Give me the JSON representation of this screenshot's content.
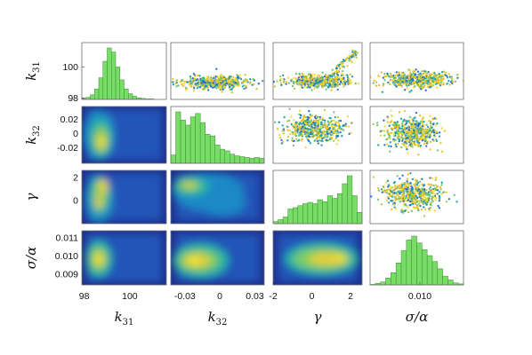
{
  "chart_data": {
    "type": "pairs",
    "variables": [
      {
        "key": "k31",
        "base": "k",
        "sub": "31",
        "ticks": [
          98,
          100
        ],
        "tick_labels": [
          "98",
          "100"
        ],
        "range": [
          97.9,
          101.6
        ]
      },
      {
        "key": "k32",
        "base": "k",
        "sub": "32",
        "ticks": [
          -0.03,
          0,
          0.03
        ],
        "tick_labels": [
          "-0.03",
          "0",
          "0.03"
        ],
        "y_ticks": [
          -0.02,
          0,
          0.02
        ],
        "y_tick_labels": [
          "-0.02",
          "0",
          "0.02"
        ],
        "range": [
          -0.042,
          0.038
        ]
      },
      {
        "key": "gamma",
        "label": "γ",
        "ticks": [
          -2,
          0,
          2
        ],
        "tick_labels": [
          "-2",
          "0",
          "2"
        ],
        "y_ticks": [
          0,
          2
        ],
        "y_tick_labels": [
          "0",
          "2"
        ],
        "range": [
          -2.0,
          2.6
        ]
      },
      {
        "key": "sigma_alpha",
        "label": "σ/α",
        "ticks": [
          0.01
        ],
        "tick_labels": [
          "0.010"
        ],
        "y_ticks": [
          0.009,
          0.01,
          0.011
        ],
        "y_tick_labels": [
          "0.009",
          "0.010",
          "0.011"
        ],
        "range": [
          0.0084,
          0.0114
        ]
      }
    ],
    "diagonal": "histogram",
    "upper": "scatter",
    "lower": "density",
    "hist_color": "#77dd66",
    "scatter_colors": [
      "#2a6fc9",
      "#21a2a8",
      "#6ec47a",
      "#c4c23c",
      "#f2c21a",
      "#f9d537"
    ],
    "density_colors": [
      "#1e2f8c",
      "#2354b8",
      "#1f89c6",
      "#27b1a5",
      "#7dcc63",
      "#e3cf37",
      "#f7e92a"
    ],
    "histograms": {
      "k31": [
        2,
        4,
        9,
        20,
        42,
        74,
        100,
        92,
        63,
        38,
        20,
        11,
        6,
        3,
        2,
        1,
        1,
        0,
        0,
        0
      ],
      "k32": [
        10,
        62,
        52,
        46,
        56,
        60,
        49,
        35,
        33,
        22,
        17,
        15,
        11,
        9,
        8,
        7,
        6,
        7,
        6
      ],
      "gamma": [
        3,
        6,
        10,
        22,
        24,
        27,
        30,
        32,
        30,
        36,
        33,
        42,
        38,
        45,
        60,
        72,
        42,
        17
      ],
      "sigma_alpha": [
        1,
        3,
        6,
        14,
        25,
        45,
        70,
        92,
        100,
        86,
        72,
        60,
        48,
        33,
        18,
        10,
        4,
        2
      ]
    }
  }
}
